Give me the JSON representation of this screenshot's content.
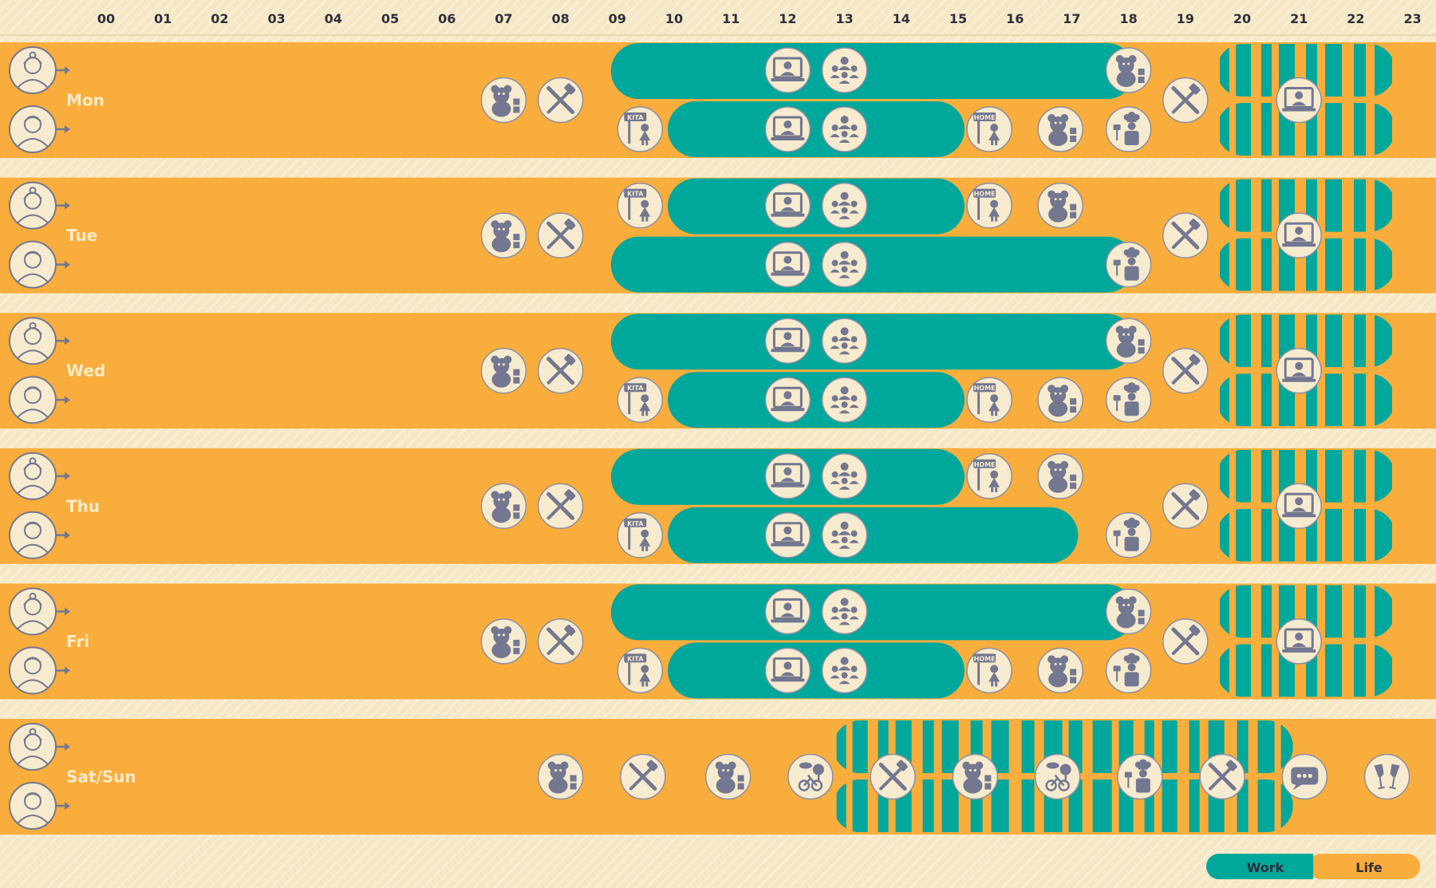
{
  "colors": {
    "life": "#f9ad3c",
    "work": "#00a79b",
    "background": "#f6e8c6",
    "icon_fill": "#737790",
    "icon_bg": "#f7ebcf",
    "text": "#2f2f3a",
    "day_text": "#fdebc7"
  },
  "hours": [
    "00",
    "01",
    "02",
    "03",
    "04",
    "05",
    "06",
    "07",
    "08",
    "09",
    "10",
    "11",
    "12",
    "13",
    "14",
    "15",
    "16",
    "17",
    "18",
    "19",
    "20",
    "21",
    "22",
    "23"
  ],
  "legend": {
    "work": "Work",
    "life": "Life"
  },
  "days": [
    {
      "label": "Mon",
      "people": [
        "woman-icon",
        "man-icon"
      ],
      "work_top": [
        9,
        18.0
      ],
      "work_bottom": [
        10,
        15.0
      ],
      "evening": [
        20,
        22.5
      ],
      "icons": [
        {
          "name": "teddy-bear-icon",
          "hour": 7.0,
          "lane": "mid"
        },
        {
          "name": "meal-icon",
          "hour": 8.0,
          "lane": "mid"
        },
        {
          "name": "video-call-icon",
          "hour": 12.0,
          "lane": "top"
        },
        {
          "name": "team-meeting-icon",
          "hour": 13.0,
          "lane": "top"
        },
        {
          "name": "teddy-bear-icon",
          "hour": 18.0,
          "lane": "top"
        },
        {
          "name": "kita-sign-icon",
          "hour": 9.4,
          "lane": "bottom"
        },
        {
          "name": "video-call-icon",
          "hour": 12.0,
          "lane": "bottom"
        },
        {
          "name": "team-meeting-icon",
          "hour": 13.0,
          "lane": "bottom"
        },
        {
          "name": "home-sign-icon",
          "hour": 15.55,
          "lane": "bottom"
        },
        {
          "name": "teddy-bear-icon",
          "hour": 16.8,
          "lane": "bottom"
        },
        {
          "name": "chef-icon",
          "hour": 18.0,
          "lane": "bottom"
        },
        {
          "name": "meal-icon",
          "hour": 19.0,
          "lane": "mid"
        },
        {
          "name": "video-call-icon",
          "hour": 21.0,
          "lane": "mid"
        }
      ]
    },
    {
      "label": "Tue",
      "people": [
        "woman-icon",
        "man-icon"
      ],
      "work_top": [
        10,
        15.0
      ],
      "work_bottom": [
        9,
        18.0
      ],
      "evening": [
        20,
        22.5
      ],
      "icons": [
        {
          "name": "teddy-bear-icon",
          "hour": 7.0,
          "lane": "mid"
        },
        {
          "name": "meal-icon",
          "hour": 8.0,
          "lane": "mid"
        },
        {
          "name": "kita-sign-icon",
          "hour": 9.4,
          "lane": "top"
        },
        {
          "name": "video-call-icon",
          "hour": 12.0,
          "lane": "top"
        },
        {
          "name": "team-meeting-icon",
          "hour": 13.0,
          "lane": "top"
        },
        {
          "name": "home-sign-icon",
          "hour": 15.55,
          "lane": "top"
        },
        {
          "name": "teddy-bear-icon",
          "hour": 16.8,
          "lane": "top"
        },
        {
          "name": "video-call-icon",
          "hour": 12.0,
          "lane": "bottom"
        },
        {
          "name": "team-meeting-icon",
          "hour": 13.0,
          "lane": "bottom"
        },
        {
          "name": "chef-icon",
          "hour": 18.0,
          "lane": "bottom"
        },
        {
          "name": "meal-icon",
          "hour": 19.0,
          "lane": "mid"
        },
        {
          "name": "video-call-icon",
          "hour": 21.0,
          "lane": "mid"
        }
      ]
    },
    {
      "label": "Wed",
      "people": [
        "woman-icon",
        "man-icon"
      ],
      "work_top": [
        9,
        18.0
      ],
      "work_bottom": [
        10,
        15.0
      ],
      "evening": [
        20,
        22.5
      ],
      "icons": [
        {
          "name": "teddy-bear-icon",
          "hour": 7.0,
          "lane": "mid"
        },
        {
          "name": "meal-icon",
          "hour": 8.0,
          "lane": "mid"
        },
        {
          "name": "video-call-icon",
          "hour": 12.0,
          "lane": "top"
        },
        {
          "name": "team-meeting-icon",
          "hour": 13.0,
          "lane": "top"
        },
        {
          "name": "teddy-bear-icon",
          "hour": 18.0,
          "lane": "top"
        },
        {
          "name": "kita-sign-icon",
          "hour": 9.4,
          "lane": "bottom"
        },
        {
          "name": "video-call-icon",
          "hour": 12.0,
          "lane": "bottom"
        },
        {
          "name": "team-meeting-icon",
          "hour": 13.0,
          "lane": "bottom"
        },
        {
          "name": "home-sign-icon",
          "hour": 15.55,
          "lane": "bottom"
        },
        {
          "name": "teddy-bear-icon",
          "hour": 16.8,
          "lane": "bottom"
        },
        {
          "name": "chef-icon",
          "hour": 18.0,
          "lane": "bottom"
        },
        {
          "name": "meal-icon",
          "hour": 19.0,
          "lane": "mid"
        },
        {
          "name": "video-call-icon",
          "hour": 21.0,
          "lane": "mid"
        }
      ]
    },
    {
      "label": "Thu",
      "people": [
        "woman-icon",
        "man-icon"
      ],
      "work_top": [
        9,
        15.0
      ],
      "work_bottom": [
        10,
        17.0
      ],
      "evening": [
        20,
        22.5
      ],
      "icons": [
        {
          "name": "teddy-bear-icon",
          "hour": 7.0,
          "lane": "mid"
        },
        {
          "name": "meal-icon",
          "hour": 8.0,
          "lane": "mid"
        },
        {
          "name": "video-call-icon",
          "hour": 12.0,
          "lane": "top"
        },
        {
          "name": "team-meeting-icon",
          "hour": 13.0,
          "lane": "top"
        },
        {
          "name": "home-sign-icon",
          "hour": 15.55,
          "lane": "top"
        },
        {
          "name": "teddy-bear-icon",
          "hour": 16.8,
          "lane": "top"
        },
        {
          "name": "kita-sign-icon",
          "hour": 9.4,
          "lane": "bottom"
        },
        {
          "name": "video-call-icon",
          "hour": 12.0,
          "lane": "bottom"
        },
        {
          "name": "team-meeting-icon",
          "hour": 13.0,
          "lane": "bottom"
        },
        {
          "name": "chef-icon",
          "hour": 18.0,
          "lane": "bottom"
        },
        {
          "name": "meal-icon",
          "hour": 19.0,
          "lane": "mid"
        },
        {
          "name": "video-call-icon",
          "hour": 21.0,
          "lane": "mid"
        }
      ]
    },
    {
      "label": "Fri",
      "people": [
        "woman-icon",
        "man-icon"
      ],
      "work_top": [
        9,
        18.0
      ],
      "work_bottom": [
        10,
        15.0
      ],
      "evening": [
        20,
        22.5
      ],
      "icons": [
        {
          "name": "teddy-bear-icon",
          "hour": 7.0,
          "lane": "mid"
        },
        {
          "name": "meal-icon",
          "hour": 8.0,
          "lane": "mid"
        },
        {
          "name": "video-call-icon",
          "hour": 12.0,
          "lane": "top"
        },
        {
          "name": "team-meeting-icon",
          "hour": 13.0,
          "lane": "top"
        },
        {
          "name": "teddy-bear-icon",
          "hour": 18.0,
          "lane": "top"
        },
        {
          "name": "kita-sign-icon",
          "hour": 9.4,
          "lane": "bottom"
        },
        {
          "name": "video-call-icon",
          "hour": 12.0,
          "lane": "bottom"
        },
        {
          "name": "team-meeting-icon",
          "hour": 13.0,
          "lane": "bottom"
        },
        {
          "name": "home-sign-icon",
          "hour": 15.55,
          "lane": "bottom"
        },
        {
          "name": "teddy-bear-icon",
          "hour": 16.8,
          "lane": "bottom"
        },
        {
          "name": "chef-icon",
          "hour": 18.0,
          "lane": "bottom"
        },
        {
          "name": "meal-icon",
          "hour": 19.0,
          "lane": "mid"
        },
        {
          "name": "video-call-icon",
          "hour": 21.0,
          "lane": "mid"
        }
      ]
    },
    {
      "label": "Sat/Sun",
      "people": [
        "woman-icon",
        "man-icon"
      ],
      "weekend_band": [
        13,
        20.7
      ],
      "icons": [
        {
          "name": "teddy-bear-icon",
          "hour": 8.0,
          "lane": "mid"
        },
        {
          "name": "meal-icon",
          "hour": 9.45,
          "lane": "mid"
        },
        {
          "name": "teddy-bear-icon",
          "hour": 10.95,
          "lane": "mid"
        },
        {
          "name": "bike-park-icon",
          "hour": 12.4,
          "lane": "mid"
        },
        {
          "name": "meal-icon",
          "hour": 13.85,
          "lane": "mid"
        },
        {
          "name": "teddy-bear-icon",
          "hour": 15.3,
          "lane": "mid"
        },
        {
          "name": "bike-park-icon",
          "hour": 16.75,
          "lane": "mid"
        },
        {
          "name": "chef-icon",
          "hour": 18.2,
          "lane": "mid"
        },
        {
          "name": "meal-icon",
          "hour": 19.65,
          "lane": "mid"
        },
        {
          "name": "chat-icon",
          "hour": 21.1,
          "lane": "mid"
        },
        {
          "name": "wine-glasses-icon",
          "hour": 22.55,
          "lane": "mid"
        }
      ]
    }
  ]
}
